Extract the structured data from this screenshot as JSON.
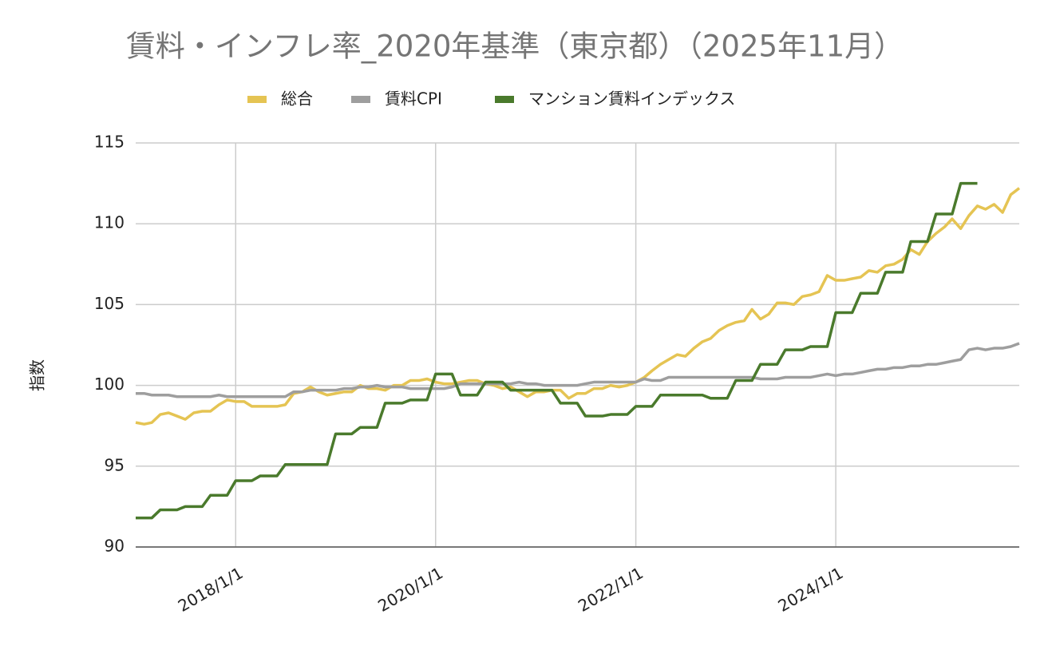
{
  "chart_data": {
    "type": "line",
    "title": "賃料・インフレ率_2020年基準（東京都）（2025年11月）",
    "ylabel": "指数",
    "x": [
      "2017/1/1",
      "2017/2/1",
      "2017/3/1",
      "2017/4/1",
      "2017/5/1",
      "2017/6/1",
      "2017/7/1",
      "2017/8/1",
      "2017/9/1",
      "2017/10/1",
      "2017/11/1",
      "2017/12/1",
      "2018/1/1",
      "2018/2/1",
      "2018/3/1",
      "2018/4/1",
      "2018/5/1",
      "2018/6/1",
      "2018/7/1",
      "2018/8/1",
      "2018/9/1",
      "2018/10/1",
      "2018/11/1",
      "2018/12/1",
      "2019/1/1",
      "2019/2/1",
      "2019/3/1",
      "2019/4/1",
      "2019/5/1",
      "2019/6/1",
      "2019/7/1",
      "2019/8/1",
      "2019/9/1",
      "2019/10/1",
      "2019/11/1",
      "2019/12/1",
      "2020/1/1",
      "2020/2/1",
      "2020/3/1",
      "2020/4/1",
      "2020/5/1",
      "2020/6/1",
      "2020/7/1",
      "2020/8/1",
      "2020/9/1",
      "2020/10/1",
      "2020/11/1",
      "2020/12/1",
      "2021/1/1",
      "2021/2/1",
      "2021/3/1",
      "2021/4/1",
      "2021/5/1",
      "2021/6/1",
      "2021/7/1",
      "2021/8/1",
      "2021/9/1",
      "2021/10/1",
      "2021/11/1",
      "2021/12/1",
      "2022/1/1",
      "2022/2/1",
      "2022/3/1",
      "2022/4/1",
      "2022/5/1",
      "2022/6/1",
      "2022/7/1",
      "2022/8/1",
      "2022/9/1",
      "2022/10/1",
      "2022/11/1",
      "2022/12/1",
      "2023/1/1",
      "2023/2/1",
      "2023/3/1",
      "2023/4/1",
      "2023/5/1",
      "2023/6/1",
      "2023/7/1",
      "2023/8/1",
      "2023/9/1",
      "2023/10/1",
      "2023/11/1",
      "2023/12/1",
      "2024/1/1",
      "2024/2/1",
      "2024/3/1",
      "2024/4/1",
      "2024/5/1",
      "2024/6/1",
      "2024/7/1",
      "2024/8/1",
      "2024/9/1",
      "2024/10/1",
      "2024/11/1",
      "2024/12/1",
      "2025/1/1",
      "2025/2/1",
      "2025/3/1",
      "2025/4/1",
      "2025/5/1",
      "2025/6/1",
      "2025/7/1",
      "2025/8/1",
      "2025/9/1",
      "2025/10/1",
      "2025/11/1"
    ],
    "series": [
      {
        "name": "総合",
        "color": "#e5c453",
        "values": [
          97.7,
          97.6,
          97.7,
          98.2,
          98.3,
          98.1,
          97.9,
          98.3,
          98.4,
          98.4,
          98.8,
          99.1,
          99.0,
          99.0,
          98.7,
          98.7,
          98.7,
          98.7,
          98.8,
          99.5,
          99.6,
          99.9,
          99.6,
          99.4,
          99.5,
          99.6,
          99.6,
          100.0,
          99.8,
          99.8,
          99.7,
          100.0,
          100.0,
          100.3,
          100.3,
          100.4,
          100.2,
          100.1,
          100.1,
          100.2,
          100.3,
          100.3,
          100.1,
          100.0,
          99.8,
          99.9,
          99.6,
          99.3,
          99.6,
          99.6,
          99.7,
          99.7,
          99.2,
          99.5,
          99.5,
          99.8,
          99.8,
          100.0,
          99.9,
          100.0,
          100.2,
          100.5,
          100.9,
          101.3,
          101.6,
          101.9,
          101.8,
          102.3,
          102.7,
          102.9,
          103.4,
          103.7,
          103.9,
          104.0,
          104.7,
          104.1,
          104.4,
          105.1,
          105.1,
          105.0,
          105.5,
          105.6,
          105.8,
          106.8,
          106.5,
          106.5,
          106.6,
          106.7,
          107.1,
          107.0,
          107.4,
          107.5,
          107.8,
          108.4,
          108.1,
          108.9,
          109.4,
          109.8,
          110.3,
          109.7,
          110.5,
          111.1,
          110.9,
          111.2,
          110.7,
          111.8,
          112.2
        ]
      },
      {
        "name": "賃料CPI",
        "color": "#9e9e9e",
        "values": [
          99.5,
          99.5,
          99.4,
          99.4,
          99.4,
          99.3,
          99.3,
          99.3,
          99.3,
          99.3,
          99.4,
          99.3,
          99.3,
          99.3,
          99.3,
          99.3,
          99.3,
          99.3,
          99.3,
          99.6,
          99.6,
          99.7,
          99.7,
          99.7,
          99.7,
          99.8,
          99.8,
          99.9,
          99.9,
          100.0,
          99.9,
          99.9,
          99.9,
          99.8,
          99.8,
          99.8,
          99.8,
          99.8,
          99.9,
          100.1,
          100.1,
          100.1,
          100.1,
          100.1,
          100.1,
          100.1,
          100.2,
          100.1,
          100.1,
          100.0,
          100.0,
          100.0,
          100.0,
          100.0,
          100.1,
          100.2,
          100.2,
          100.2,
          100.2,
          100.2,
          100.2,
          100.4,
          100.3,
          100.3,
          100.5,
          100.5,
          100.5,
          100.5,
          100.5,
          100.5,
          100.5,
          100.5,
          100.5,
          100.5,
          100.5,
          100.4,
          100.4,
          100.4,
          100.5,
          100.5,
          100.5,
          100.5,
          100.6,
          100.7,
          100.6,
          100.7,
          100.7,
          100.8,
          100.9,
          101.0,
          101.0,
          101.1,
          101.1,
          101.2,
          101.2,
          101.3,
          101.3,
          101.4,
          101.5,
          101.6,
          102.2,
          102.3,
          102.2,
          102.3,
          102.3,
          102.4,
          102.6
        ]
      },
      {
        "name": "マンション賃料インデックス",
        "color": "#4a7a2c",
        "values": [
          91.8,
          91.8,
          91.8,
          92.3,
          92.3,
          92.3,
          92.5,
          92.5,
          92.5,
          93.2,
          93.2,
          93.2,
          94.1,
          94.1,
          94.1,
          94.4,
          94.4,
          94.4,
          95.1,
          95.1,
          95.1,
          95.1,
          95.1,
          95.1,
          97.0,
          97.0,
          97.0,
          97.4,
          97.4,
          97.4,
          98.9,
          98.9,
          98.9,
          99.1,
          99.1,
          99.1,
          100.7,
          100.7,
          100.7,
          99.4,
          99.4,
          99.4,
          100.2,
          100.2,
          100.2,
          99.7,
          99.7,
          99.7,
          99.7,
          99.7,
          99.7,
          98.9,
          98.9,
          98.9,
          98.1,
          98.1,
          98.1,
          98.2,
          98.2,
          98.2,
          98.7,
          98.7,
          98.7,
          99.4,
          99.4,
          99.4,
          99.4,
          99.4,
          99.4,
          99.2,
          99.2,
          99.2,
          100.3,
          100.3,
          100.3,
          101.3,
          101.3,
          101.3,
          102.2,
          102.2,
          102.2,
          102.4,
          102.4,
          102.4,
          104.5,
          104.5,
          104.5,
          105.7,
          105.7,
          105.7,
          107.0,
          107.0,
          107.0,
          108.9,
          108.9,
          108.9,
          110.6,
          110.6,
          110.6,
          112.5,
          112.5,
          112.5,
          null,
          null,
          null,
          null,
          null
        ]
      }
    ],
    "xlim": [
      "2017/1/1",
      "2025/11/1"
    ],
    "xticks": [
      "2018/1/1",
      "2020/1/1",
      "2022/1/1",
      "2024/1/1"
    ],
    "ylim": [
      90,
      115
    ],
    "yticks": [
      90,
      95,
      100,
      105,
      110,
      115
    ],
    "grid": true,
    "legend": "top"
  }
}
